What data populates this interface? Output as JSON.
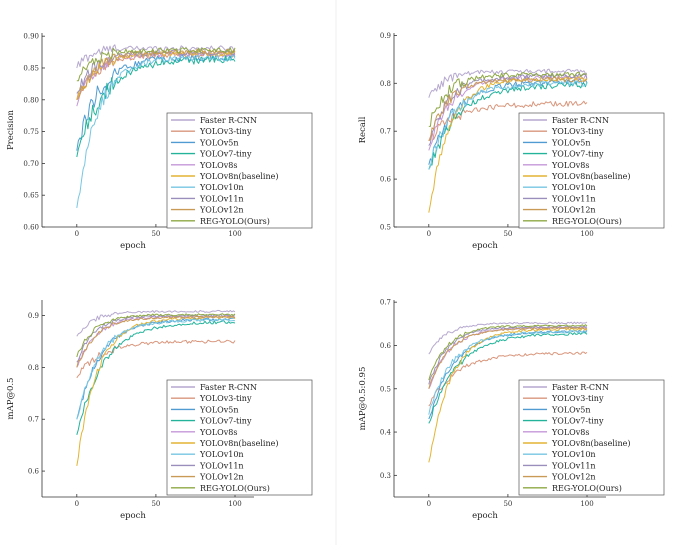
{
  "legend_entries": [
    {
      "name": "Faster R-CNN",
      "color": "#b6a9cf"
    },
    {
      "name": "YOLOv3-tiny",
      "color": "#d9967c"
    },
    {
      "name": "YOLOv5n",
      "color": "#4f9bd2"
    },
    {
      "name": "YOLOv7-tiny",
      "color": "#22b39a"
    },
    {
      "name": "YOLOv8s",
      "color": "#c497d8"
    },
    {
      "name": "YOLOv8n(baseline)",
      "color": "#e3b434"
    },
    {
      "name": "YOLOv10n",
      "color": "#77c6e3"
    },
    {
      "name": "YOLOv11n",
      "color": "#9a8fbc"
    },
    {
      "name": "YOLOv12n",
      "color": "#c99a55"
    },
    {
      "name": "REG-YOLO(Ours)",
      "color": "#8ea844"
    }
  ],
  "chart_data": [
    {
      "type": "line",
      "title": "",
      "xlabel": "epoch",
      "ylabel": "Precision",
      "xlim": [
        -22,
        112
      ],
      "ylim": [
        0.6,
        0.905
      ],
      "xticks": [
        0,
        50,
        100
      ],
      "yticks": [
        0.6,
        0.65,
        0.7,
        0.75,
        0.8,
        0.85,
        0.9
      ],
      "ytick_labels": [
        "0.60",
        "0.65",
        "0.70",
        "0.75",
        "0.80",
        "0.85",
        "0.90"
      ],
      "legend": "lower-right",
      "series": [
        {
          "name": "Faster R-CNN",
          "start": 0.85,
          "plateau": 0.881,
          "tau": 8,
          "noise": 0.004
        },
        {
          "name": "YOLOv3-tiny",
          "start": 0.8,
          "plateau": 0.87,
          "tau": 12,
          "noise": 0.004
        },
        {
          "name": "YOLOv5n",
          "start": 0.72,
          "plateau": 0.867,
          "tau": 14,
          "noise": 0.006
        },
        {
          "name": "YOLOv7-tiny",
          "start": 0.71,
          "plateau": 0.864,
          "tau": 17,
          "noise": 0.006
        },
        {
          "name": "YOLOv8s",
          "start": 0.79,
          "plateau": 0.872,
          "tau": 11,
          "noise": 0.004
        },
        {
          "name": "YOLOv8n(baseline)",
          "start": 0.8,
          "plateau": 0.873,
          "tau": 12,
          "noise": 0.004
        },
        {
          "name": "YOLOv10n",
          "start": 0.63,
          "plateau": 0.866,
          "tau": 13,
          "noise": 0.005
        },
        {
          "name": "YOLOv11n",
          "start": 0.81,
          "plateau": 0.874,
          "tau": 11,
          "noise": 0.004
        },
        {
          "name": "YOLOv12n",
          "start": 0.8,
          "plateau": 0.876,
          "tau": 12,
          "noise": 0.004
        },
        {
          "name": "REG-YOLO(Ours)",
          "start": 0.83,
          "plateau": 0.878,
          "tau": 10,
          "noise": 0.004
        }
      ]
    },
    {
      "type": "line",
      "title": "",
      "xlabel": "epoch",
      "ylabel": "Recall",
      "xlim": [
        -22,
        112
      ],
      "ylim": [
        0.5,
        0.905
      ],
      "xticks": [
        0,
        50,
        100
      ],
      "yticks": [
        0.5,
        0.6,
        0.7,
        0.8,
        0.9
      ],
      "ytick_labels": [
        "0.5",
        "0.6",
        "0.7",
        "0.8",
        "0.9"
      ],
      "legend": "lower-right",
      "series": [
        {
          "name": "Faster R-CNN",
          "start": 0.77,
          "plateau": 0.825,
          "tau": 10,
          "noise": 0.005
        },
        {
          "name": "YOLOv3-tiny",
          "start": 0.68,
          "plateau": 0.757,
          "tau": 16,
          "noise": 0.006
        },
        {
          "name": "YOLOv5n",
          "start": 0.63,
          "plateau": 0.803,
          "tau": 16,
          "noise": 0.006
        },
        {
          "name": "YOLOv7-tiny",
          "start": 0.62,
          "plateau": 0.797,
          "tau": 18,
          "noise": 0.006
        },
        {
          "name": "YOLOv8s",
          "start": 0.66,
          "plateau": 0.812,
          "tau": 13,
          "noise": 0.005
        },
        {
          "name": "YOLOv8n(baseline)",
          "start": 0.53,
          "plateau": 0.81,
          "tau": 13,
          "noise": 0.005
        },
        {
          "name": "YOLOv10n",
          "start": 0.62,
          "plateau": 0.8,
          "tau": 15,
          "noise": 0.006
        },
        {
          "name": "YOLOv11n",
          "start": 0.67,
          "plateau": 0.815,
          "tau": 12,
          "noise": 0.005
        },
        {
          "name": "YOLOv12n",
          "start": 0.68,
          "plateau": 0.808,
          "tau": 12,
          "noise": 0.005
        },
        {
          "name": "REG-YOLO(Ours)",
          "start": 0.71,
          "plateau": 0.818,
          "tau": 11,
          "noise": 0.005
        }
      ]
    },
    {
      "type": "line",
      "title": "",
      "xlabel": "epoch",
      "ylabel": "mAP@0.5",
      "xlim": [
        -22,
        112
      ],
      "ylim": [
        0.55,
        0.93
      ],
      "xticks": [
        0,
        50,
        100
      ],
      "yticks": [
        0.6,
        0.7,
        0.8,
        0.9
      ],
      "ytick_labels": [
        "0.6",
        "0.7",
        "0.8",
        "0.9"
      ],
      "legend": "lower-right",
      "series": [
        {
          "name": "Faster R-CNN",
          "start": 0.86,
          "plateau": 0.908,
          "tau": 10,
          "noise": 0.002
        },
        {
          "name": "YOLOv3-tiny",
          "start": 0.78,
          "plateau": 0.85,
          "tau": 15,
          "noise": 0.003
        },
        {
          "name": "YOLOv5n",
          "start": 0.7,
          "plateau": 0.893,
          "tau": 15,
          "noise": 0.003
        },
        {
          "name": "YOLOv7-tiny",
          "start": 0.67,
          "plateau": 0.888,
          "tau": 17,
          "noise": 0.003
        },
        {
          "name": "YOLOv8s",
          "start": 0.8,
          "plateau": 0.898,
          "tau": 12,
          "noise": 0.002
        },
        {
          "name": "YOLOv8n(baseline)",
          "start": 0.61,
          "plateau": 0.896,
          "tau": 13,
          "noise": 0.003
        },
        {
          "name": "YOLOv10n",
          "start": 0.7,
          "plateau": 0.891,
          "tau": 14,
          "noise": 0.003
        },
        {
          "name": "YOLOv11n",
          "start": 0.81,
          "plateau": 0.9,
          "tau": 11,
          "noise": 0.002
        },
        {
          "name": "YOLOv12n",
          "start": 0.8,
          "plateau": 0.897,
          "tau": 12,
          "noise": 0.002
        },
        {
          "name": "REG-YOLO(Ours)",
          "start": 0.82,
          "plateau": 0.902,
          "tau": 11,
          "noise": 0.002
        }
      ]
    },
    {
      "type": "line",
      "title": "",
      "xlabel": "epoch",
      "ylabel": "mAP@0.5:0.95",
      "xlim": [
        -22,
        112
      ],
      "ylim": [
        0.25,
        0.705
      ],
      "xticks": [
        0,
        50,
        100
      ],
      "yticks": [
        0.3,
        0.4,
        0.5,
        0.6,
        0.7
      ],
      "ytick_labels": [
        "0.3",
        "0.4",
        "0.5",
        "0.6",
        "0.7"
      ],
      "legend": "lower-right",
      "series": [
        {
          "name": "Faster R-CNN",
          "start": 0.58,
          "plateau": 0.652,
          "tau": 11,
          "noise": 0.002
        },
        {
          "name": "YOLOv3-tiny",
          "start": 0.46,
          "plateau": 0.582,
          "tau": 17,
          "noise": 0.003
        },
        {
          "name": "YOLOv5n",
          "start": 0.43,
          "plateau": 0.633,
          "tau": 16,
          "noise": 0.003
        },
        {
          "name": "YOLOv7-tiny",
          "start": 0.42,
          "plateau": 0.628,
          "tau": 18,
          "noise": 0.003
        },
        {
          "name": "YOLOv8s",
          "start": 0.5,
          "plateau": 0.641,
          "tau": 13,
          "noise": 0.002
        },
        {
          "name": "YOLOv8n(baseline)",
          "start": 0.33,
          "plateau": 0.638,
          "tau": 14,
          "noise": 0.003
        },
        {
          "name": "YOLOv10n",
          "start": 0.44,
          "plateau": 0.632,
          "tau": 15,
          "noise": 0.003
        },
        {
          "name": "YOLOv11n",
          "start": 0.51,
          "plateau": 0.643,
          "tau": 12,
          "noise": 0.002
        },
        {
          "name": "YOLOv12n",
          "start": 0.5,
          "plateau": 0.64,
          "tau": 13,
          "noise": 0.002
        },
        {
          "name": "REG-YOLO(Ours)",
          "start": 0.52,
          "plateau": 0.646,
          "tau": 12,
          "noise": 0.002
        }
      ]
    }
  ]
}
